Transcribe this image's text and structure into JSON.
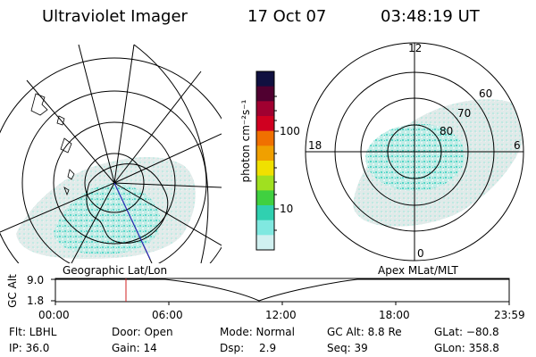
{
  "header": {
    "instrument": "Ultraviolet Imager",
    "date": "17 Oct 07",
    "time": "03:48:19 UT"
  },
  "left_map": {
    "label": "Geographic Lat/Lon"
  },
  "right_map": {
    "label": "Apex MLat/MLT",
    "mlt_labels": [
      "12",
      "18",
      "6",
      "0"
    ],
    "mlat_labels": [
      "60",
      "70",
      "80"
    ]
  },
  "colorbar": {
    "unit_label": "photon cm⁻²s⁻¹",
    "ticks": [
      "100",
      "10"
    ],
    "colors": [
      "#101040",
      "#500030",
      "#a00030",
      "#d00020",
      "#f07000",
      "#f0a000",
      "#f0e000",
      "#a0e020",
      "#40d040",
      "#30d0b0",
      "#80e8e0",
      "#d0f0f0"
    ]
  },
  "timeline": {
    "axis_label": "GC Alt",
    "y_ticks": [
      "9.0",
      "1.8"
    ],
    "x_ticks": [
      "00:00",
      "06:00",
      "12:00",
      "18:00",
      "23:59"
    ],
    "current_time_marker": "03:48"
  },
  "status": {
    "filter": "Flt: LBHL",
    "door": "Door: Open",
    "mode": "Mode: Normal",
    "gc_alt": "GC Alt: 8.8 Re",
    "glat": "GLat: −80.8",
    "ip": "IP: 36.0",
    "gain": "Gain: 14",
    "dsp_label": "Dsp:",
    "dsp_value": "2.9",
    "seq": "Seq: 39",
    "glon": "GLon: 358.8"
  }
}
